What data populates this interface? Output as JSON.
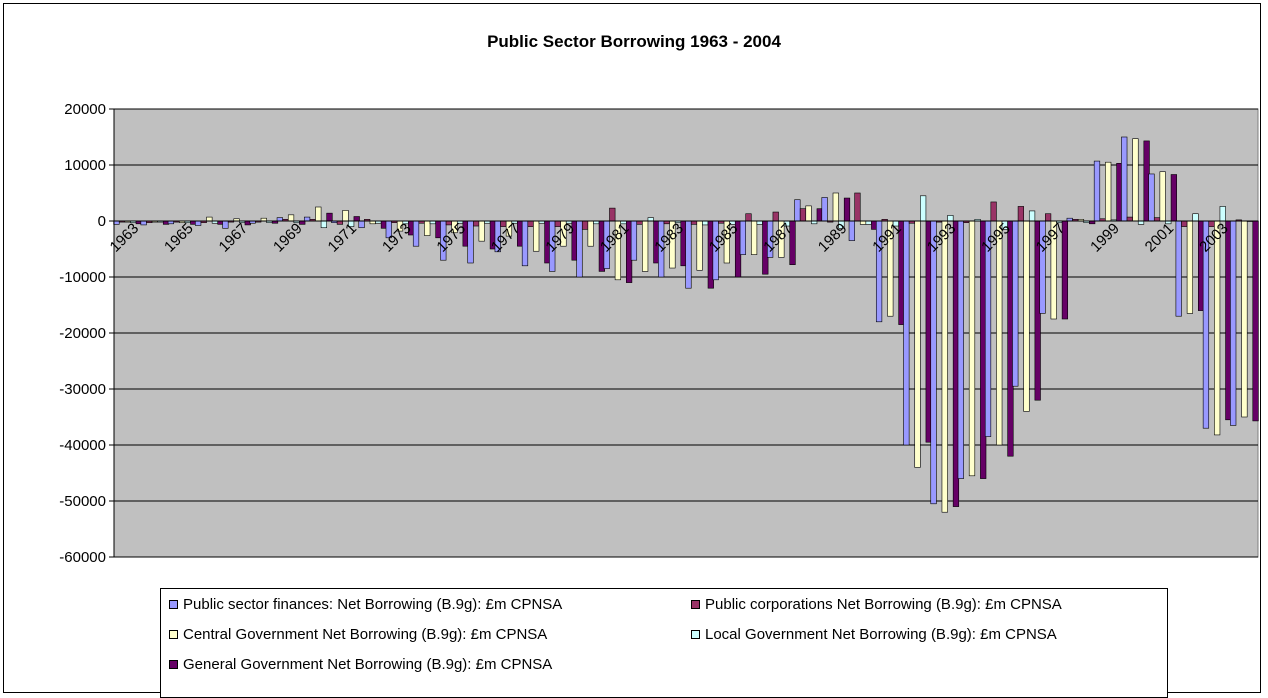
{
  "chart_data": {
    "type": "bar",
    "title": "Public Sector Borrowing 1963 - 2004",
    "xlabel": "",
    "ylabel": "",
    "ylim": [
      -60000,
      20000
    ],
    "y_ticks": [
      20000,
      10000,
      0,
      -10000,
      -20000,
      -30000,
      -40000,
      -50000,
      -60000
    ],
    "x_tick_labels": [
      "1963",
      "1965",
      "1967",
      "1969",
      "1971",
      "1973",
      "1975",
      "1977",
      "1979",
      "1981",
      "1983",
      "1985",
      "1987",
      "1989",
      "1991",
      "1993",
      "1995",
      "1997",
      "1999",
      "2001",
      "2003"
    ],
    "grid": true,
    "legend_position": "bottom",
    "plot_background": "#c0c0c0",
    "categories": [
      "1963",
      "1964",
      "1965",
      "1966",
      "1967",
      "1968",
      "1969",
      "1970",
      "1971",
      "1972",
      "1973",
      "1974",
      "1975",
      "1976",
      "1977",
      "1978",
      "1979",
      "1980",
      "1981",
      "1982",
      "1983",
      "1984",
      "1985",
      "1986",
      "1987",
      "1988",
      "1989",
      "1990",
      "1991",
      "1992",
      "1993",
      "1994",
      "1995",
      "1996",
      "1997",
      "1998",
      "1999",
      "2000",
      "2001",
      "2002",
      "2003",
      "2004"
    ],
    "series": [
      {
        "name": "Public sector finances: Net Borrowing (B.9g): £m CPNSA",
        "color": "#9999ff",
        "values": [
          -600,
          -700,
          -500,
          -800,
          -1300,
          -400,
          600,
          700,
          -300,
          -1200,
          -3000,
          -4500,
          -7000,
          -7500,
          -5500,
          -8000,
          -9000,
          -10000,
          -8500,
          -7000,
          -10000,
          -12000,
          -10500,
          -6000,
          -6500,
          3800,
          4200,
          -3500,
          -18000,
          -40000,
          -50500,
          -46000,
          -38500,
          -29500,
          -16500,
          500,
          10700,
          15000,
          8400,
          -17000,
          -37000,
          -36500
        ]
      },
      {
        "name": "Public corporations Net Borrowing (B.9g): £m CPNSA",
        "color": "#993366",
        "values": [
          -200,
          -300,
          -200,
          -300,
          -200,
          -200,
          300,
          300,
          -600,
          300,
          -300,
          -400,
          -700,
          -900,
          -1000,
          -1000,
          -1000,
          -1500,
          2300,
          -600,
          -500,
          -600,
          -400,
          1300,
          1600,
          2200,
          -200,
          5000,
          300,
          -400,
          -200,
          -300,
          3400,
          2600,
          1300,
          300,
          400,
          700,
          600,
          -1000,
          -1000,
          200
        ]
      },
      {
        "name": "Central Government Net Borrowing  (B.9g): £m CPNSA",
        "color": "#ffffcc",
        "values": [
          -200,
          -200,
          -300,
          700,
          400,
          500,
          1100,
          2500,
          1900,
          -500,
          -1800,
          -2600,
          -2100,
          -3600,
          -2700,
          -5400,
          -4500,
          -4500,
          -10500,
          -9000,
          -8400,
          -8800,
          -7500,
          -6000,
          -6500,
          2700,
          5000,
          -600,
          -17000,
          -44000,
          -52000,
          -45500,
          -40000,
          -34000,
          -17500,
          300,
          10500,
          14700,
          8800,
          -16500,
          -38200,
          -35000
        ]
      },
      {
        "name": "Local Government Net Borrowing  (B.9g): £m CPNSA",
        "color": "#ccffff",
        "values": [
          -300,
          -200,
          -300,
          -400,
          -300,
          -300,
          -300,
          -1200,
          -1000,
          -400,
          -500,
          -500,
          -400,
          -400,
          -400,
          -400,
          -400,
          -500,
          -500,
          600,
          -300,
          -700,
          -600,
          -600,
          -900,
          -500,
          -1300,
          -600,
          -900,
          4500,
          1000,
          300,
          -1500,
          1800,
          -300,
          -300,
          200,
          -600,
          -500,
          1300,
          2600,
          0
        ]
      },
      {
        "name": "General Government Net Borrowing  (B.9g): £m CPNSA",
        "color": "#660066",
        "values": [
          -500,
          -600,
          -600,
          -600,
          -700,
          -400,
          -600,
          1400,
          800,
          -1300,
          -2500,
          -3000,
          -4500,
          -5000,
          -4500,
          -7500,
          -7000,
          -9000,
          -11000,
          -7500,
          -8000,
          -12000,
          -10000,
          -9500,
          -7800,
          2200,
          4100,
          -1500,
          -18500,
          -39500,
          -51000,
          -46000,
          -42000,
          -32000,
          -17500,
          -500,
          10300,
          14300,
          8300,
          -16000,
          -35500,
          -35700
        ]
      }
    ]
  }
}
